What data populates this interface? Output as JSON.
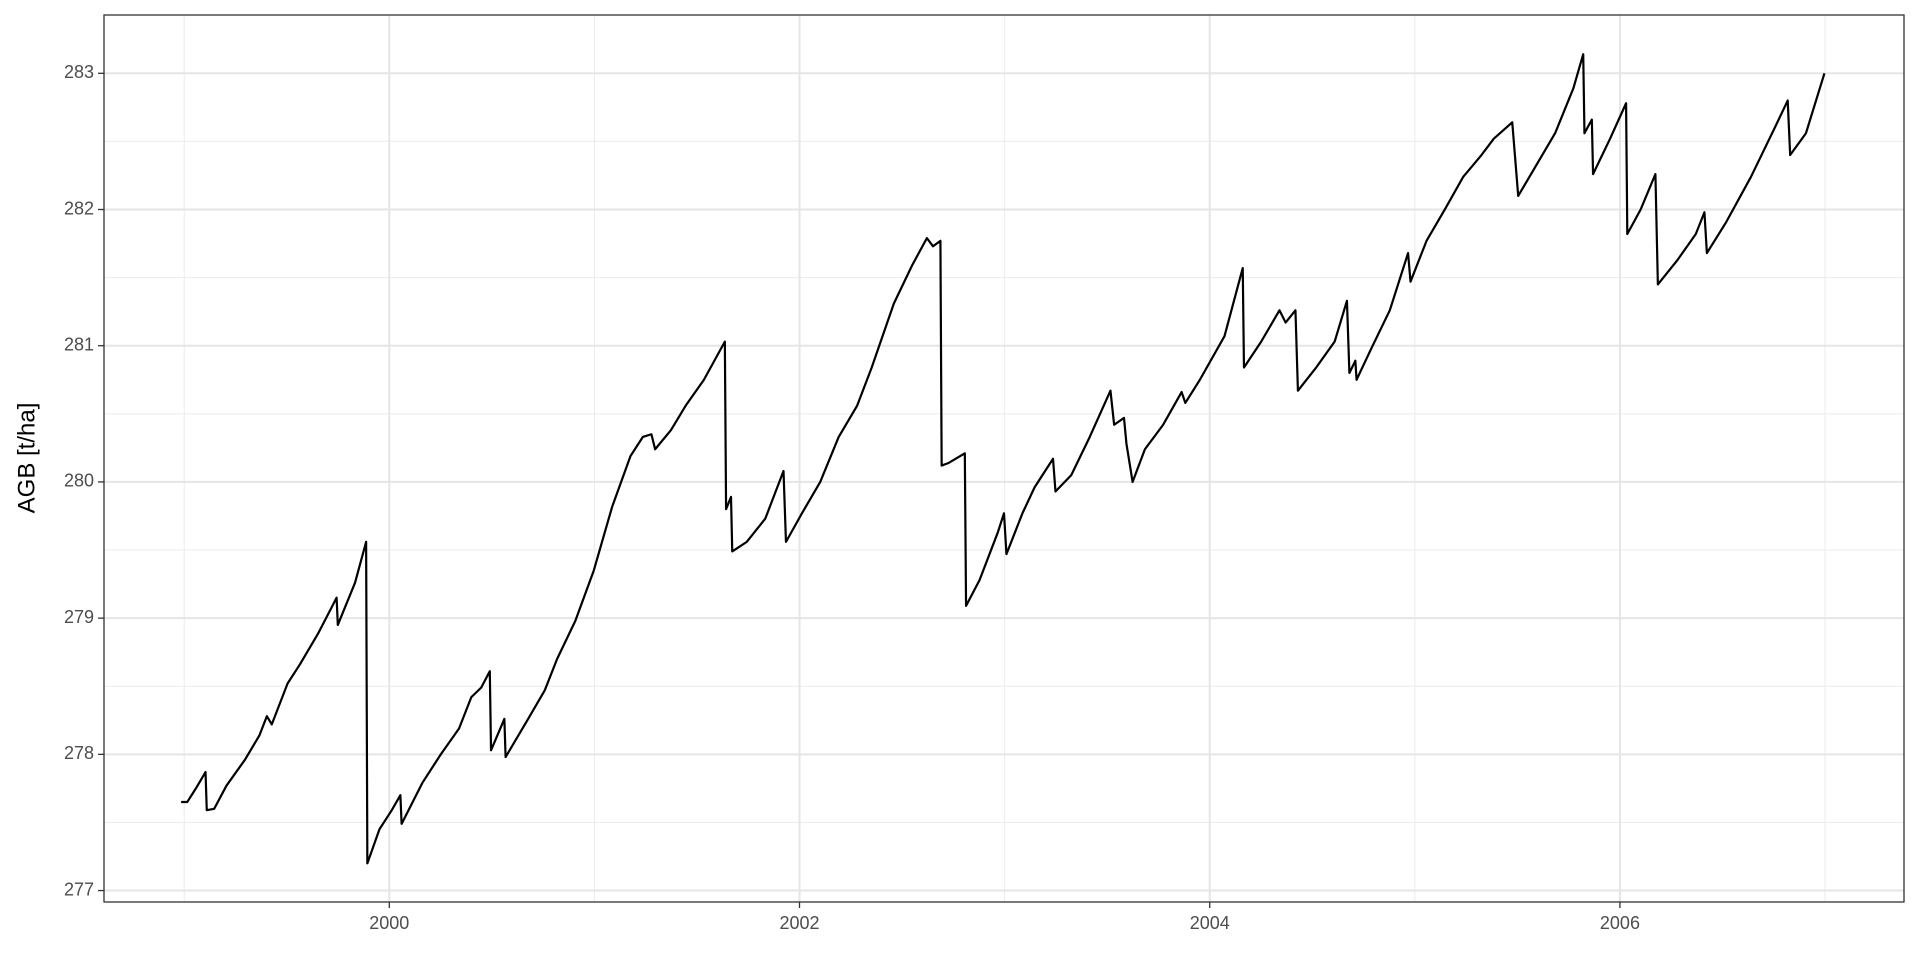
{
  "chart_data": {
    "type": "line",
    "y_label": "AGB [t/ha]",
    "xlim": [
      1998.609,
      2007.385
    ],
    "xticks": [
      2000,
      2002,
      2004,
      2006
    ],
    "ylim": [
      276.916,
      283.428
    ],
    "yticks": [
      277,
      278,
      279,
      280,
      281,
      282,
      283
    ],
    "grid": true,
    "series": [
      {
        "color": "#000000",
        "x": [
          1998.985,
          1999.015,
          1999.057,
          1999.104,
          1999.11,
          1999.146,
          1999.206,
          1999.296,
          1999.367,
          1999.403,
          1999.427,
          1999.504,
          1999.564,
          1999.654,
          1999.743,
          1999.749,
          1999.833,
          1999.887,
          1999.893,
          1999.952,
          2000.012,
          2000.054,
          2000.06,
          2000.161,
          2000.251,
          2000.34,
          2000.4,
          2000.448,
          2000.49,
          2000.496,
          2000.561,
          2000.567,
          2000.669,
          2000.758,
          2000.818,
          2000.907,
          2000.997,
          2001.087,
          2001.176,
          2001.236,
          2001.278,
          2001.296,
          2001.373,
          2001.445,
          2001.534,
          2001.636,
          2001.642,
          2001.666,
          2001.672,
          2001.743,
          2001.833,
          2001.922,
          2001.934,
          2002.012,
          2002.101,
          2002.191,
          2002.281,
          2002.352,
          2002.46,
          2002.549,
          2002.621,
          2002.651,
          2002.687,
          2002.693,
          2002.728,
          2002.806,
          2002.812,
          2002.878,
          2002.967,
          2002.997,
          2003.009,
          2003.087,
          2003.146,
          2003.236,
          2003.248,
          2003.325,
          2003.415,
          2003.516,
          2003.534,
          2003.582,
          2003.594,
          2003.624,
          2003.684,
          2003.773,
          2003.863,
          2003.881,
          2003.952,
          2004.072,
          2004.161,
          2004.167,
          2004.251,
          2004.34,
          2004.37,
          2004.418,
          2004.43,
          2004.519,
          2004.609,
          2004.669,
          2004.681,
          2004.71,
          2004.716,
          2004.788,
          2004.878,
          2004.967,
          2004.979,
          2005.057,
          2005.146,
          2005.236,
          2005.325,
          2005.385,
          2005.475,
          2005.504,
          2005.594,
          2005.684,
          2005.773,
          2005.821,
          2005.827,
          2005.863,
          2005.869,
          2005.952,
          2006.03,
          2006.036,
          2006.101,
          2006.173,
          2006.185,
          2006.281,
          2006.37,
          2006.412,
          2006.424,
          2006.519,
          2006.639,
          2006.758,
          2006.818,
          2006.83,
          2006.907,
          2006.997
        ],
        "values": [
          277.65,
          277.65,
          277.75,
          277.87,
          277.59,
          277.6,
          277.77,
          277.96,
          278.14,
          278.28,
          278.22,
          278.52,
          278.66,
          278.89,
          279.15,
          278.95,
          279.26,
          279.56,
          277.2,
          277.45,
          277.59,
          277.7,
          277.49,
          277.79,
          278.0,
          278.19,
          278.42,
          278.49,
          278.61,
          278.03,
          278.26,
          277.98,
          278.24,
          278.47,
          278.7,
          278.98,
          279.35,
          279.82,
          280.19,
          280.33,
          280.35,
          280.24,
          280.38,
          280.56,
          280.75,
          281.03,
          279.8,
          279.89,
          279.49,
          279.56,
          279.73,
          280.08,
          279.56,
          279.77,
          280.0,
          280.33,
          280.56,
          280.84,
          281.31,
          281.59,
          281.79,
          281.73,
          281.77,
          280.12,
          280.14,
          280.21,
          279.09,
          279.28,
          279.63,
          279.77,
          279.47,
          279.77,
          279.96,
          280.17,
          279.93,
          280.05,
          280.33,
          280.67,
          280.42,
          280.47,
          280.28,
          280.0,
          280.24,
          280.42,
          280.66,
          280.58,
          280.75,
          281.07,
          281.57,
          280.84,
          281.03,
          281.26,
          281.17,
          281.26,
          280.67,
          280.84,
          281.03,
          281.33,
          280.8,
          280.89,
          280.75,
          280.98,
          281.26,
          281.68,
          281.47,
          281.77,
          282.0,
          282.24,
          282.4,
          282.52,
          282.64,
          282.1,
          282.33,
          282.56,
          282.89,
          283.14,
          282.56,
          282.66,
          282.26,
          282.52,
          282.78,
          281.82,
          282.0,
          282.26,
          281.45,
          281.63,
          281.82,
          281.98,
          281.68,
          281.91,
          282.24,
          282.61,
          282.8,
          282.4,
          282.56,
          283.0
        ]
      }
    ]
  }
}
